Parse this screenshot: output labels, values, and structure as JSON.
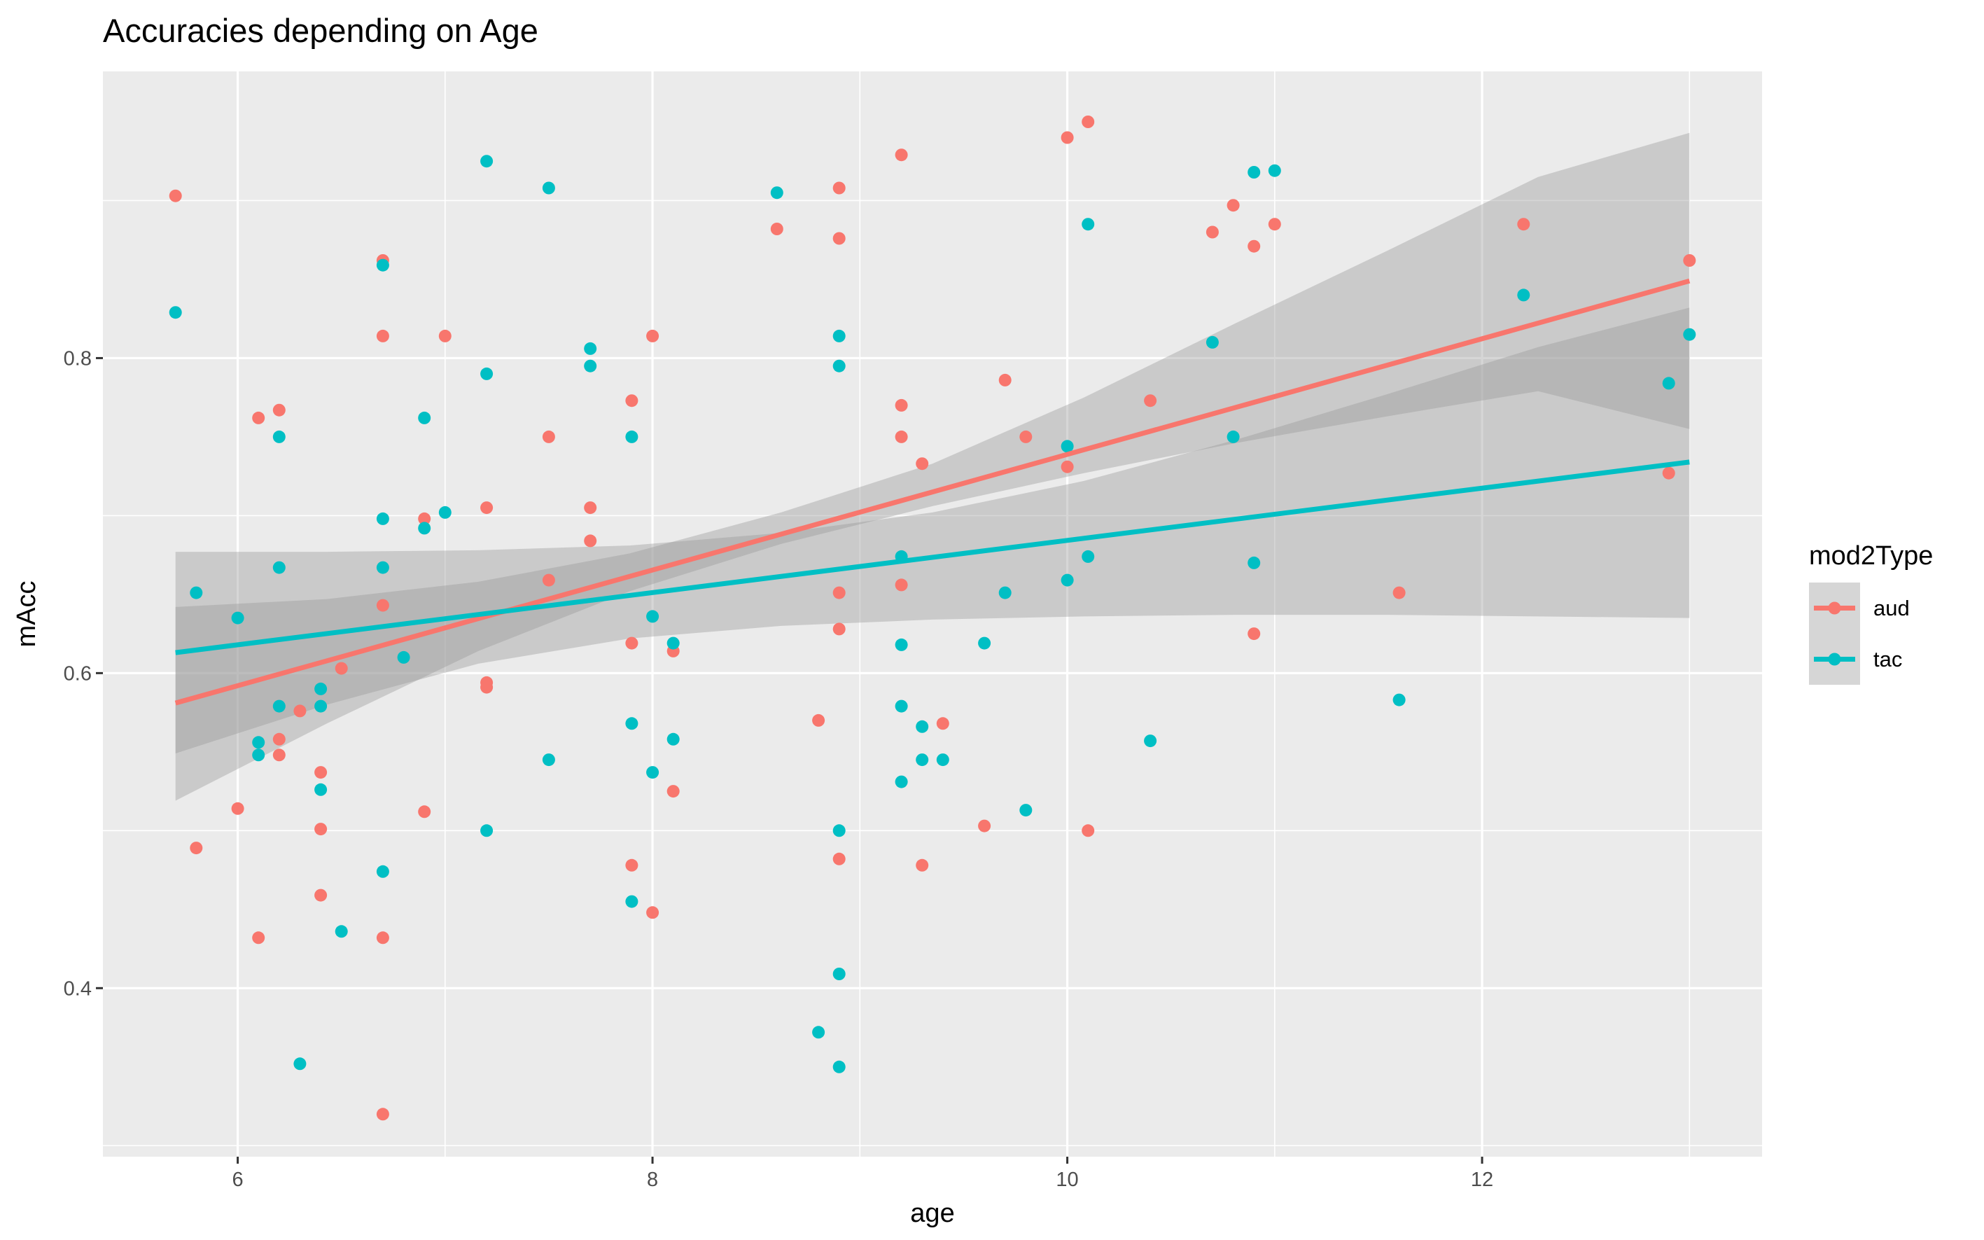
{
  "chart_data": {
    "type": "scatter",
    "title": "Accuracies depending on Age",
    "xlabel": "age",
    "ylabel": "mAcc",
    "xlim": [
      5.35,
      13.35
    ],
    "ylim": [
      0.293,
      0.982
    ],
    "x_ticks": [
      6,
      8,
      10,
      12
    ],
    "y_ticks": [
      0.4,
      0.6,
      0.8
    ],
    "x_tick_labels": [
      "6",
      "8",
      "10",
      "12"
    ],
    "y_tick_labels": [
      "0.4",
      "0.6",
      "0.8"
    ],
    "grid": true,
    "legend": {
      "title": "mod2Type",
      "position": "right",
      "entries": [
        "aud",
        "tac"
      ]
    },
    "colors": {
      "aud": "#F8766D",
      "tac": "#00BFC4",
      "ribbon": "#999999",
      "panel": "#EBEBEB",
      "grid": "#FFFFFF"
    },
    "series": [
      {
        "name": "aud",
        "color": "#F8766D",
        "points": [
          [
            5.7,
            0.903
          ],
          [
            5.8,
            0.489
          ],
          [
            6.0,
            0.514
          ],
          [
            6.1,
            0.762
          ],
          [
            6.1,
            0.432
          ],
          [
            6.2,
            0.767
          ],
          [
            6.2,
            0.558
          ],
          [
            6.2,
            0.548
          ],
          [
            6.3,
            0.576
          ],
          [
            6.4,
            0.537
          ],
          [
            6.4,
            0.501
          ],
          [
            6.4,
            0.459
          ],
          [
            6.5,
            0.603
          ],
          [
            6.7,
            0.862
          ],
          [
            6.7,
            0.814
          ],
          [
            6.7,
            0.643
          ],
          [
            6.7,
            0.432
          ],
          [
            6.7,
            0.32
          ],
          [
            6.9,
            0.698
          ],
          [
            6.9,
            0.512
          ],
          [
            7.0,
            0.814
          ],
          [
            7.2,
            0.705
          ],
          [
            7.2,
            0.594
          ],
          [
            7.2,
            0.591
          ],
          [
            7.5,
            0.75
          ],
          [
            7.5,
            0.659
          ],
          [
            7.7,
            0.705
          ],
          [
            7.7,
            0.684
          ],
          [
            7.9,
            0.773
          ],
          [
            7.9,
            0.619
          ],
          [
            7.9,
            0.478
          ],
          [
            8.0,
            0.814
          ],
          [
            8.0,
            0.448
          ],
          [
            8.1,
            0.614
          ],
          [
            8.1,
            0.525
          ],
          [
            8.6,
            0.882
          ],
          [
            8.8,
            0.57
          ],
          [
            8.9,
            0.908
          ],
          [
            8.9,
            0.876
          ],
          [
            8.9,
            0.651
          ],
          [
            8.9,
            0.628
          ],
          [
            8.9,
            0.482
          ],
          [
            9.2,
            0.929
          ],
          [
            9.2,
            0.77
          ],
          [
            9.2,
            0.75
          ],
          [
            9.2,
            0.656
          ],
          [
            9.3,
            0.733
          ],
          [
            9.3,
            0.478
          ],
          [
            9.4,
            0.568
          ],
          [
            9.6,
            0.503
          ],
          [
            9.7,
            0.786
          ],
          [
            9.8,
            0.75
          ],
          [
            10.0,
            0.94
          ],
          [
            10.0,
            0.731
          ],
          [
            10.1,
            0.95
          ],
          [
            10.1,
            0.5
          ],
          [
            10.4,
            0.773
          ],
          [
            10.7,
            0.88
          ],
          [
            10.8,
            0.897
          ],
          [
            10.9,
            0.871
          ],
          [
            10.9,
            0.625
          ],
          [
            11.0,
            0.885
          ],
          [
            11.6,
            0.651
          ],
          [
            12.2,
            0.885
          ],
          [
            12.9,
            0.727
          ],
          [
            13.0,
            0.862
          ]
        ],
        "fit": {
          "x": [
            5.7,
            13.0
          ],
          "y": [
            0.581,
            0.849
          ]
        },
        "ribbon": {
          "x": [
            5.7,
            6.43,
            7.16,
            7.89,
            8.62,
            9.35,
            10.08,
            10.81,
            11.54,
            12.27,
            13.0
          ],
          "lower": [
            0.519,
            0.568,
            0.614,
            0.652,
            0.682,
            0.706,
            0.727,
            0.746,
            0.763,
            0.779,
            0.755
          ],
          "upper": [
            0.642,
            0.647,
            0.658,
            0.676,
            0.702,
            0.733,
            0.775,
            0.822,
            0.868,
            0.915,
            0.943
          ]
        }
      },
      {
        "name": "tac",
        "color": "#00BFC4",
        "points": [
          [
            5.7,
            0.829
          ],
          [
            5.8,
            0.651
          ],
          [
            6.0,
            0.635
          ],
          [
            6.1,
            0.556
          ],
          [
            6.1,
            0.548
          ],
          [
            6.2,
            0.75
          ],
          [
            6.2,
            0.667
          ],
          [
            6.2,
            0.579
          ],
          [
            6.3,
            0.352
          ],
          [
            6.4,
            0.59
          ],
          [
            6.4,
            0.579
          ],
          [
            6.4,
            0.526
          ],
          [
            6.5,
            0.436
          ],
          [
            6.7,
            0.859
          ],
          [
            6.7,
            0.698
          ],
          [
            6.7,
            0.667
          ],
          [
            6.7,
            0.474
          ],
          [
            6.8,
            0.61
          ],
          [
            6.9,
            0.762
          ],
          [
            6.9,
            0.692
          ],
          [
            7.0,
            0.702
          ],
          [
            7.2,
            0.925
          ],
          [
            7.2,
            0.79
          ],
          [
            7.2,
            0.5
          ],
          [
            7.5,
            0.908
          ],
          [
            7.5,
            0.545
          ],
          [
            7.7,
            0.806
          ],
          [
            7.7,
            0.795
          ],
          [
            7.9,
            0.75
          ],
          [
            7.9,
            0.568
          ],
          [
            7.9,
            0.455
          ],
          [
            8.0,
            0.636
          ],
          [
            8.0,
            0.537
          ],
          [
            8.1,
            0.619
          ],
          [
            8.1,
            0.558
          ],
          [
            8.6,
            0.905
          ],
          [
            8.8,
            0.372
          ],
          [
            8.9,
            0.814
          ],
          [
            8.9,
            0.795
          ],
          [
            8.9,
            0.5
          ],
          [
            8.9,
            0.409
          ],
          [
            8.9,
            0.35
          ],
          [
            9.2,
            0.674
          ],
          [
            9.2,
            0.618
          ],
          [
            9.2,
            0.579
          ],
          [
            9.2,
            0.531
          ],
          [
            9.3,
            0.566
          ],
          [
            9.3,
            0.545
          ],
          [
            9.4,
            0.545
          ],
          [
            9.6,
            0.619
          ],
          [
            9.7,
            0.651
          ],
          [
            9.8,
            0.513
          ],
          [
            10.0,
            0.744
          ],
          [
            10.0,
            0.659
          ],
          [
            10.1,
            0.885
          ],
          [
            10.1,
            0.674
          ],
          [
            10.4,
            0.557
          ],
          [
            10.7,
            0.81
          ],
          [
            10.8,
            0.75
          ],
          [
            10.9,
            0.918
          ],
          [
            10.9,
            0.67
          ],
          [
            11.0,
            0.919
          ],
          [
            11.6,
            0.583
          ],
          [
            12.2,
            0.84
          ],
          [
            12.9,
            0.784
          ],
          [
            13.0,
            0.815
          ]
        ],
        "fit": {
          "x": [
            5.7,
            13.0
          ],
          "y": [
            0.613,
            0.734
          ]
        },
        "ribbon": {
          "x": [
            5.7,
            6.43,
            7.16,
            7.89,
            8.62,
            9.35,
            10.08,
            10.81,
            11.54,
            12.27,
            13.0
          ],
          "lower": [
            0.549,
            0.58,
            0.606,
            0.622,
            0.63,
            0.634,
            0.636,
            0.637,
            0.637,
            0.636,
            0.635
          ],
          "upper": [
            0.677,
            0.677,
            0.678,
            0.681,
            0.689,
            0.702,
            0.722,
            0.748,
            0.777,
            0.807,
            0.832
          ]
        }
      }
    ]
  }
}
